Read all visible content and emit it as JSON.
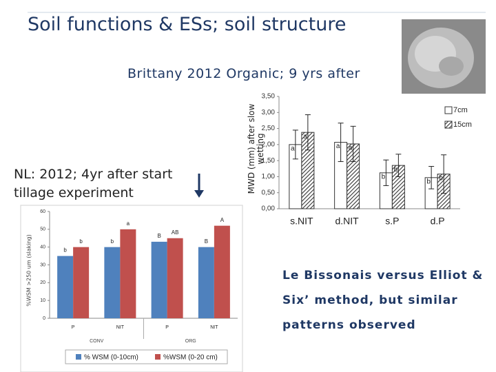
{
  "slide": {
    "title": "Soil functions & ESs; soil structure",
    "subtitle": "Brittany 2012 Organic; 9 yrs after",
    "note": "NL: 2012; 4yr after start tillage experiment",
    "conclusion": "Le Bissonais versus Elliot & Six’ method, but similar patterns observed"
  },
  "chart_data": [
    {
      "type": "bar",
      "y_label": "MWD (mm) after slow wetting",
      "categories": [
        "s.NIT",
        "d.NIT",
        "s.P",
        "d.P"
      ],
      "series": [
        {
          "name": "7cm",
          "color": "#ffffff",
          "values": [
            2.0,
            2.07,
            1.12,
            0.97
          ],
          "errors": [
            0.45,
            0.6,
            0.4,
            0.35
          ],
          "letters": [
            "a",
            "a",
            "b",
            "b"
          ]
        },
        {
          "name": "15cm",
          "color": "#555555",
          "pattern": "diagonal-hatch",
          "values": [
            2.38,
            2.02,
            1.35,
            1.08
          ],
          "errors": [
            0.55,
            0.55,
            0.35,
            0.6
          ],
          "letters": [
            "a",
            "a",
            "b",
            "b"
          ]
        }
      ],
      "ylim": [
        0,
        3.5
      ],
      "yticks": [
        {
          "value": 0,
          "label": "0,00"
        },
        {
          "value": 0.5,
          "label": "0,50"
        },
        {
          "value": 1,
          "label": "1,00"
        },
        {
          "value": 1.5,
          "label": "1,50"
        },
        {
          "value": 2,
          "label": "2,00"
        },
        {
          "value": 2.5,
          "label": "2,50"
        },
        {
          "value": 3,
          "label": "3,00"
        },
        {
          "value": 3.5,
          "label": "3,50"
        }
      ],
      "grid": false,
      "legend": "top-right"
    },
    {
      "type": "bar",
      "y_label": "%WSM >250 um (slaking)",
      "categories": [
        "P",
        "NIT",
        "P",
        "NIT"
      ],
      "group_labels": [
        "CONV",
        "ORG"
      ],
      "series": [
        {
          "name": "% WSM (0-10cm)",
          "color": "#4f81bd",
          "values": [
            35,
            40,
            43,
            40
          ],
          "letters": [
            "b",
            "b",
            "B",
            "B"
          ]
        },
        {
          "name": "%WSM (0-20 cm)",
          "color": "#c0504d",
          "values": [
            40,
            50,
            45,
            52
          ],
          "letters": [
            "b",
            "a",
            "AB",
            "A"
          ]
        }
      ],
      "ylim": [
        0,
        60
      ],
      "yticks": [
        0,
        10,
        20,
        30,
        40,
        50,
        60
      ],
      "grid": false,
      "legend": "bottom"
    }
  ]
}
